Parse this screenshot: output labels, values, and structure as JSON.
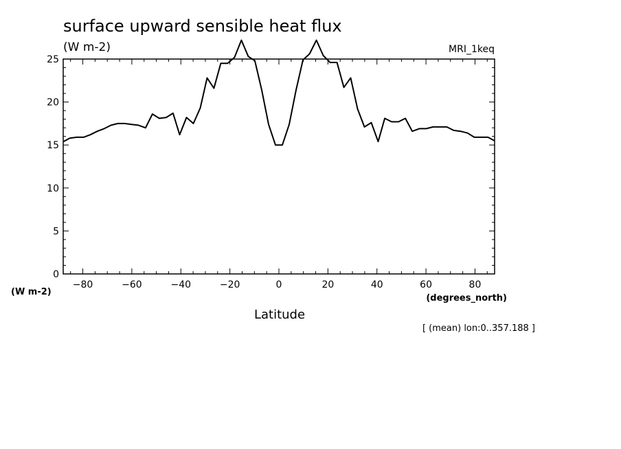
{
  "chart_data": {
    "type": "line",
    "title": "surface upward sensible heat flux",
    "subtitle": "(W m-2)",
    "dataset": "MRI_1keq",
    "ylabel": "(W m-2)",
    "xlabel": "Latitude",
    "xunits": "(degrees_north)",
    "note": "[ (mean) lon:0..357.188 ]",
    "xlim": [
      -88,
      88
    ],
    "ylim": [
      0,
      25
    ],
    "xticks": [
      -80,
      -60,
      -40,
      -20,
      0,
      20,
      40,
      60,
      80
    ],
    "yticks": [
      0,
      5,
      10,
      15,
      20,
      25
    ],
    "series": [
      {
        "x": [
          -87.9,
          -85.3,
          -82.5,
          -79.7,
          -76.9,
          -74.1,
          -71.3,
          -68.5,
          -65.7,
          -62.9,
          -60.1,
          -57.3,
          -54.4,
          -51.6,
          -48.8,
          -46.0,
          -43.2,
          -40.5,
          -37.7,
          -34.9,
          -32.1,
          -29.3,
          -26.5,
          -23.7,
          -20.9,
          -18.1,
          -15.3,
          -12.5,
          -9.8,
          -7.0,
          -4.2,
          -1.4,
          1.4,
          4.2,
          7.0,
          9.8,
          12.5,
          15.3,
          18.1,
          20.9,
          23.7,
          26.5,
          29.3,
          32.1,
          34.9,
          37.7,
          40.5,
          43.2,
          46.0,
          48.8,
          51.6,
          54.4,
          57.3,
          60.1,
          62.9,
          65.7,
          68.5,
          71.3,
          74.1,
          76.9,
          79.7,
          82.5,
          85.3,
          87.9
        ],
        "y": [
          15.4,
          15.8,
          15.9,
          15.9,
          16.2,
          16.6,
          16.9,
          17.3,
          17.5,
          17.5,
          17.4,
          17.3,
          17.0,
          18.6,
          18.1,
          18.2,
          18.7,
          16.2,
          18.2,
          17.5,
          19.3,
          22.8,
          21.6,
          24.5,
          24.5,
          25.2,
          27.2,
          25.3,
          24.8,
          21.4,
          17.4,
          15.0,
          15.0,
          17.4,
          21.4,
          24.9,
          25.6,
          27.2,
          25.4,
          24.6,
          24.6,
          21.7,
          22.8,
          19.2,
          17.1,
          17.6,
          15.4,
          18.1,
          17.7,
          17.7,
          18.1,
          16.6,
          16.9,
          16.9,
          17.1,
          17.1,
          17.1,
          16.7,
          16.6,
          16.4,
          15.9,
          15.9,
          15.9,
          15.5
        ]
      }
    ]
  }
}
